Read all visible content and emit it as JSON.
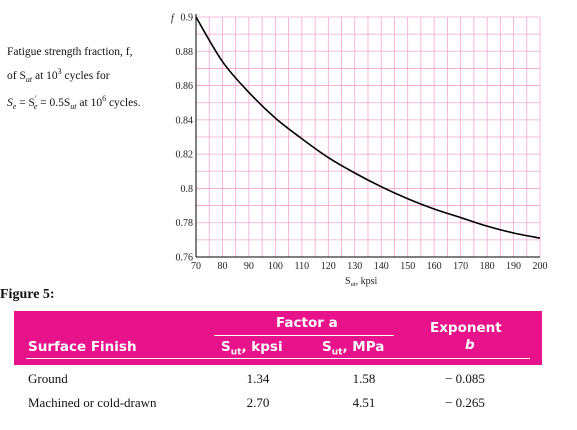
{
  "chart_data": {
    "type": "line",
    "y_axis_label": "f",
    "x_axis_label_main": "S",
    "x_axis_label_sub": "ut",
    "x_axis_label_unit": ", kpsi",
    "xlim": [
      70,
      200
    ],
    "ylim": [
      0.76,
      0.9
    ],
    "x_ticks": [
      70,
      80,
      90,
      100,
      110,
      120,
      130,
      140,
      150,
      160,
      170,
      180,
      190,
      200
    ],
    "y_ticks": [
      "0.76",
      "0.78",
      "0.8",
      "0.82",
      "0.84",
      "0.86",
      "0.88",
      "0.9"
    ],
    "grid": true,
    "series": [
      {
        "x": [
          70,
          80,
          90,
          100,
          110,
          120,
          130,
          140,
          150,
          160,
          170,
          180,
          190,
          200
        ],
        "y": [
          0.9,
          0.874,
          0.856,
          0.841,
          0.829,
          0.818,
          0.809,
          0.801,
          0.794,
          0.788,
          0.783,
          0.778,
          0.774,
          0.771
        ]
      }
    ],
    "color": "#000000",
    "grid_color": "#f2a6cf"
  },
  "description": {
    "line1": "Fatigue strength fraction, f,",
    "line2_pre": "of S",
    "line2_sub": "ut",
    "line2_mid": " at 10",
    "line2_sup": "3",
    "line2_post": " cycles for",
    "line3_s": "S",
    "line3_s_sub": "e",
    "line3_eq1": " = S",
    "line3_s2_sup": "′",
    "line3_s2_sub": "e",
    "line3_eq2": " = 0.5S",
    "line3_s3_sub": "ut",
    "line3_at": " at 10",
    "line3_sup": "6",
    "line3_post": " cycles."
  },
  "figure_label": "Figure 5:",
  "table": {
    "header_color": "#e8138a",
    "factor_a_label": "Factor a",
    "exponent_label": "Exponent",
    "exponent_b_label": "b",
    "surface_finish_label": "Surface Finish",
    "sut_kpsi_main": "S",
    "sut_kpsi_sub": "ut",
    "sut_kpsi_unit": ", kpsi",
    "sut_mpa_main": "S",
    "sut_mpa_sub": "ut",
    "sut_mpa_unit": ", MPa",
    "rows": [
      {
        "finish": "Ground",
        "kpsi": "1.34",
        "mpa": "1.58",
        "b": "− 0.085"
      },
      {
        "finish": "Machined or cold-drawn",
        "kpsi": "2.70",
        "mpa": "4.51",
        "b": "− 0.265"
      }
    ]
  }
}
